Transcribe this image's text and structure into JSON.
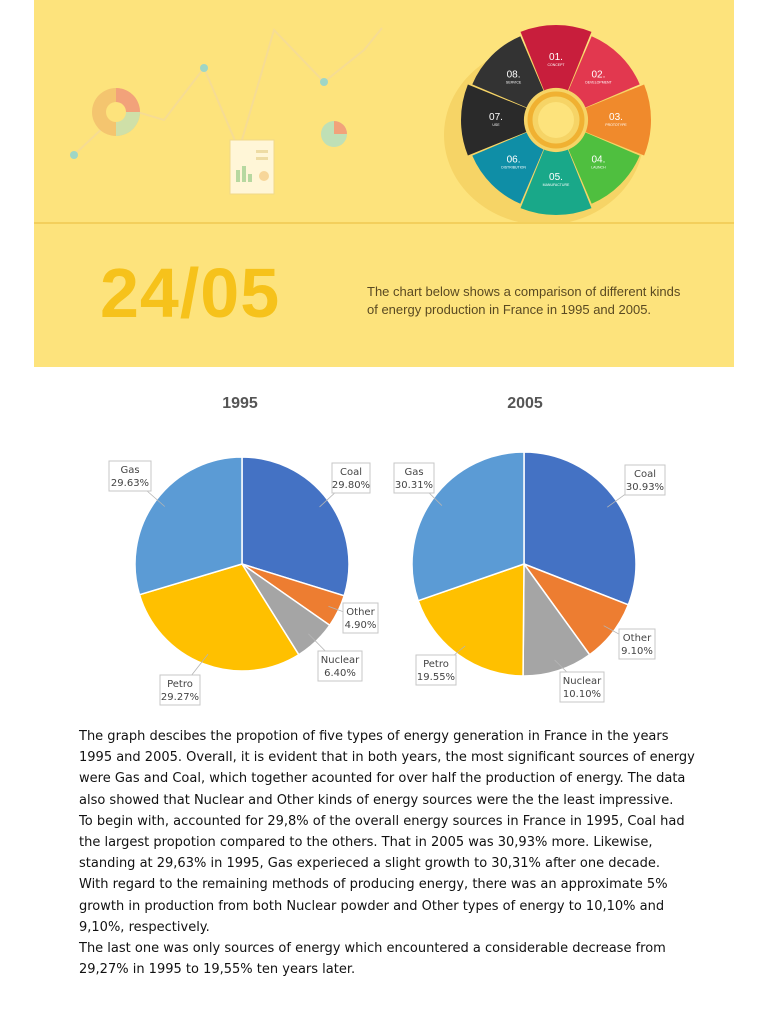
{
  "banner": {
    "date": "24/05",
    "intro": "The chart below shows a comparison of different kinds of energy production in France in 1995 and 2005.",
    "wheel": [
      {
        "num": "01.",
        "label": "CONCEPT",
        "color": "#c81e3c"
      },
      {
        "num": "02.",
        "label": "DEVELOPMENT",
        "color": "#e2384f"
      },
      {
        "num": "03.",
        "label": "PROTOTYPE",
        "color": "#f08a2c"
      },
      {
        "num": "04.",
        "label": "LAUNCH",
        "color": "#4fbf3f"
      },
      {
        "num": "05.",
        "label": "MANUFACTURE",
        "color": "#19a889"
      },
      {
        "num": "06.",
        "label": "DISTRIBUTION",
        "color": "#0f8ea6"
      },
      {
        "num": "07.",
        "label": "USE",
        "color": "#2a2a2a"
      },
      {
        "num": "08.",
        "label": "SERVICE",
        "color": "#333333"
      }
    ]
  },
  "chart_data": [
    {
      "type": "pie",
      "title": "1995",
      "slices": [
        {
          "label": "Coal",
          "value": 29.8,
          "display": "29.80%",
          "color": "#4472c4"
        },
        {
          "label": "Other",
          "value": 4.9,
          "display": "4.90%",
          "color": "#ed7d31"
        },
        {
          "label": "Nuclear",
          "value": 6.4,
          "display": "6.40%",
          "color": "#a5a5a5"
        },
        {
          "label": "Petro",
          "value": 29.27,
          "display": "29.27%",
          "color": "#ffc000"
        },
        {
          "label": "Gas",
          "value": 29.63,
          "display": "29.63%",
          "color": "#5b9bd5"
        }
      ]
    },
    {
      "type": "pie",
      "title": "2005",
      "slices": [
        {
          "label": "Coal",
          "value": 30.93,
          "display": "30.93%",
          "color": "#4472c4"
        },
        {
          "label": "Other",
          "value": 9.1,
          "display": "9.10%",
          "color": "#ed7d31"
        },
        {
          "label": "Nuclear",
          "value": 10.1,
          "display": "10.10%",
          "color": "#a5a5a5"
        },
        {
          "label": "Petro",
          "value": 19.55,
          "display": "19.55%",
          "color": "#ffc000"
        },
        {
          "label": "Gas",
          "value": 30.31,
          "display": "30.31%",
          "color": "#5b9bd5"
        }
      ]
    }
  ],
  "essay": {
    "p1": "The graph descibes the propotion of five types of energy generation in France in the years 1995 and 2005. Overall, it is evident that in both years, the most significant sources of energy were Gas and Coal, which together acounted for over half the production of energy. The data also showed that Nuclear and Other kinds of energy sources were the the least impressive.",
    "p2": "To begin with, accounted for 29,8% of the overall energy sources in France in 1995, Coal had the largest propotion compared to the others. That in 2005 was 30,93% more. Likewise, standing at 29,63% in 1995, Gas experieced a slight growth to 30,31% after one decade.",
    "p3": "With regard to the remaining methods of producing energy, there was an approximate 5% growth in production from both Nuclear powder and Other types of energy to 10,10% and 9,10%, respectively.",
    "p4": "The last one was only sources of energy which encountered a considerable decrease from 29,27% in 1995 to 19,55% ten years later."
  }
}
